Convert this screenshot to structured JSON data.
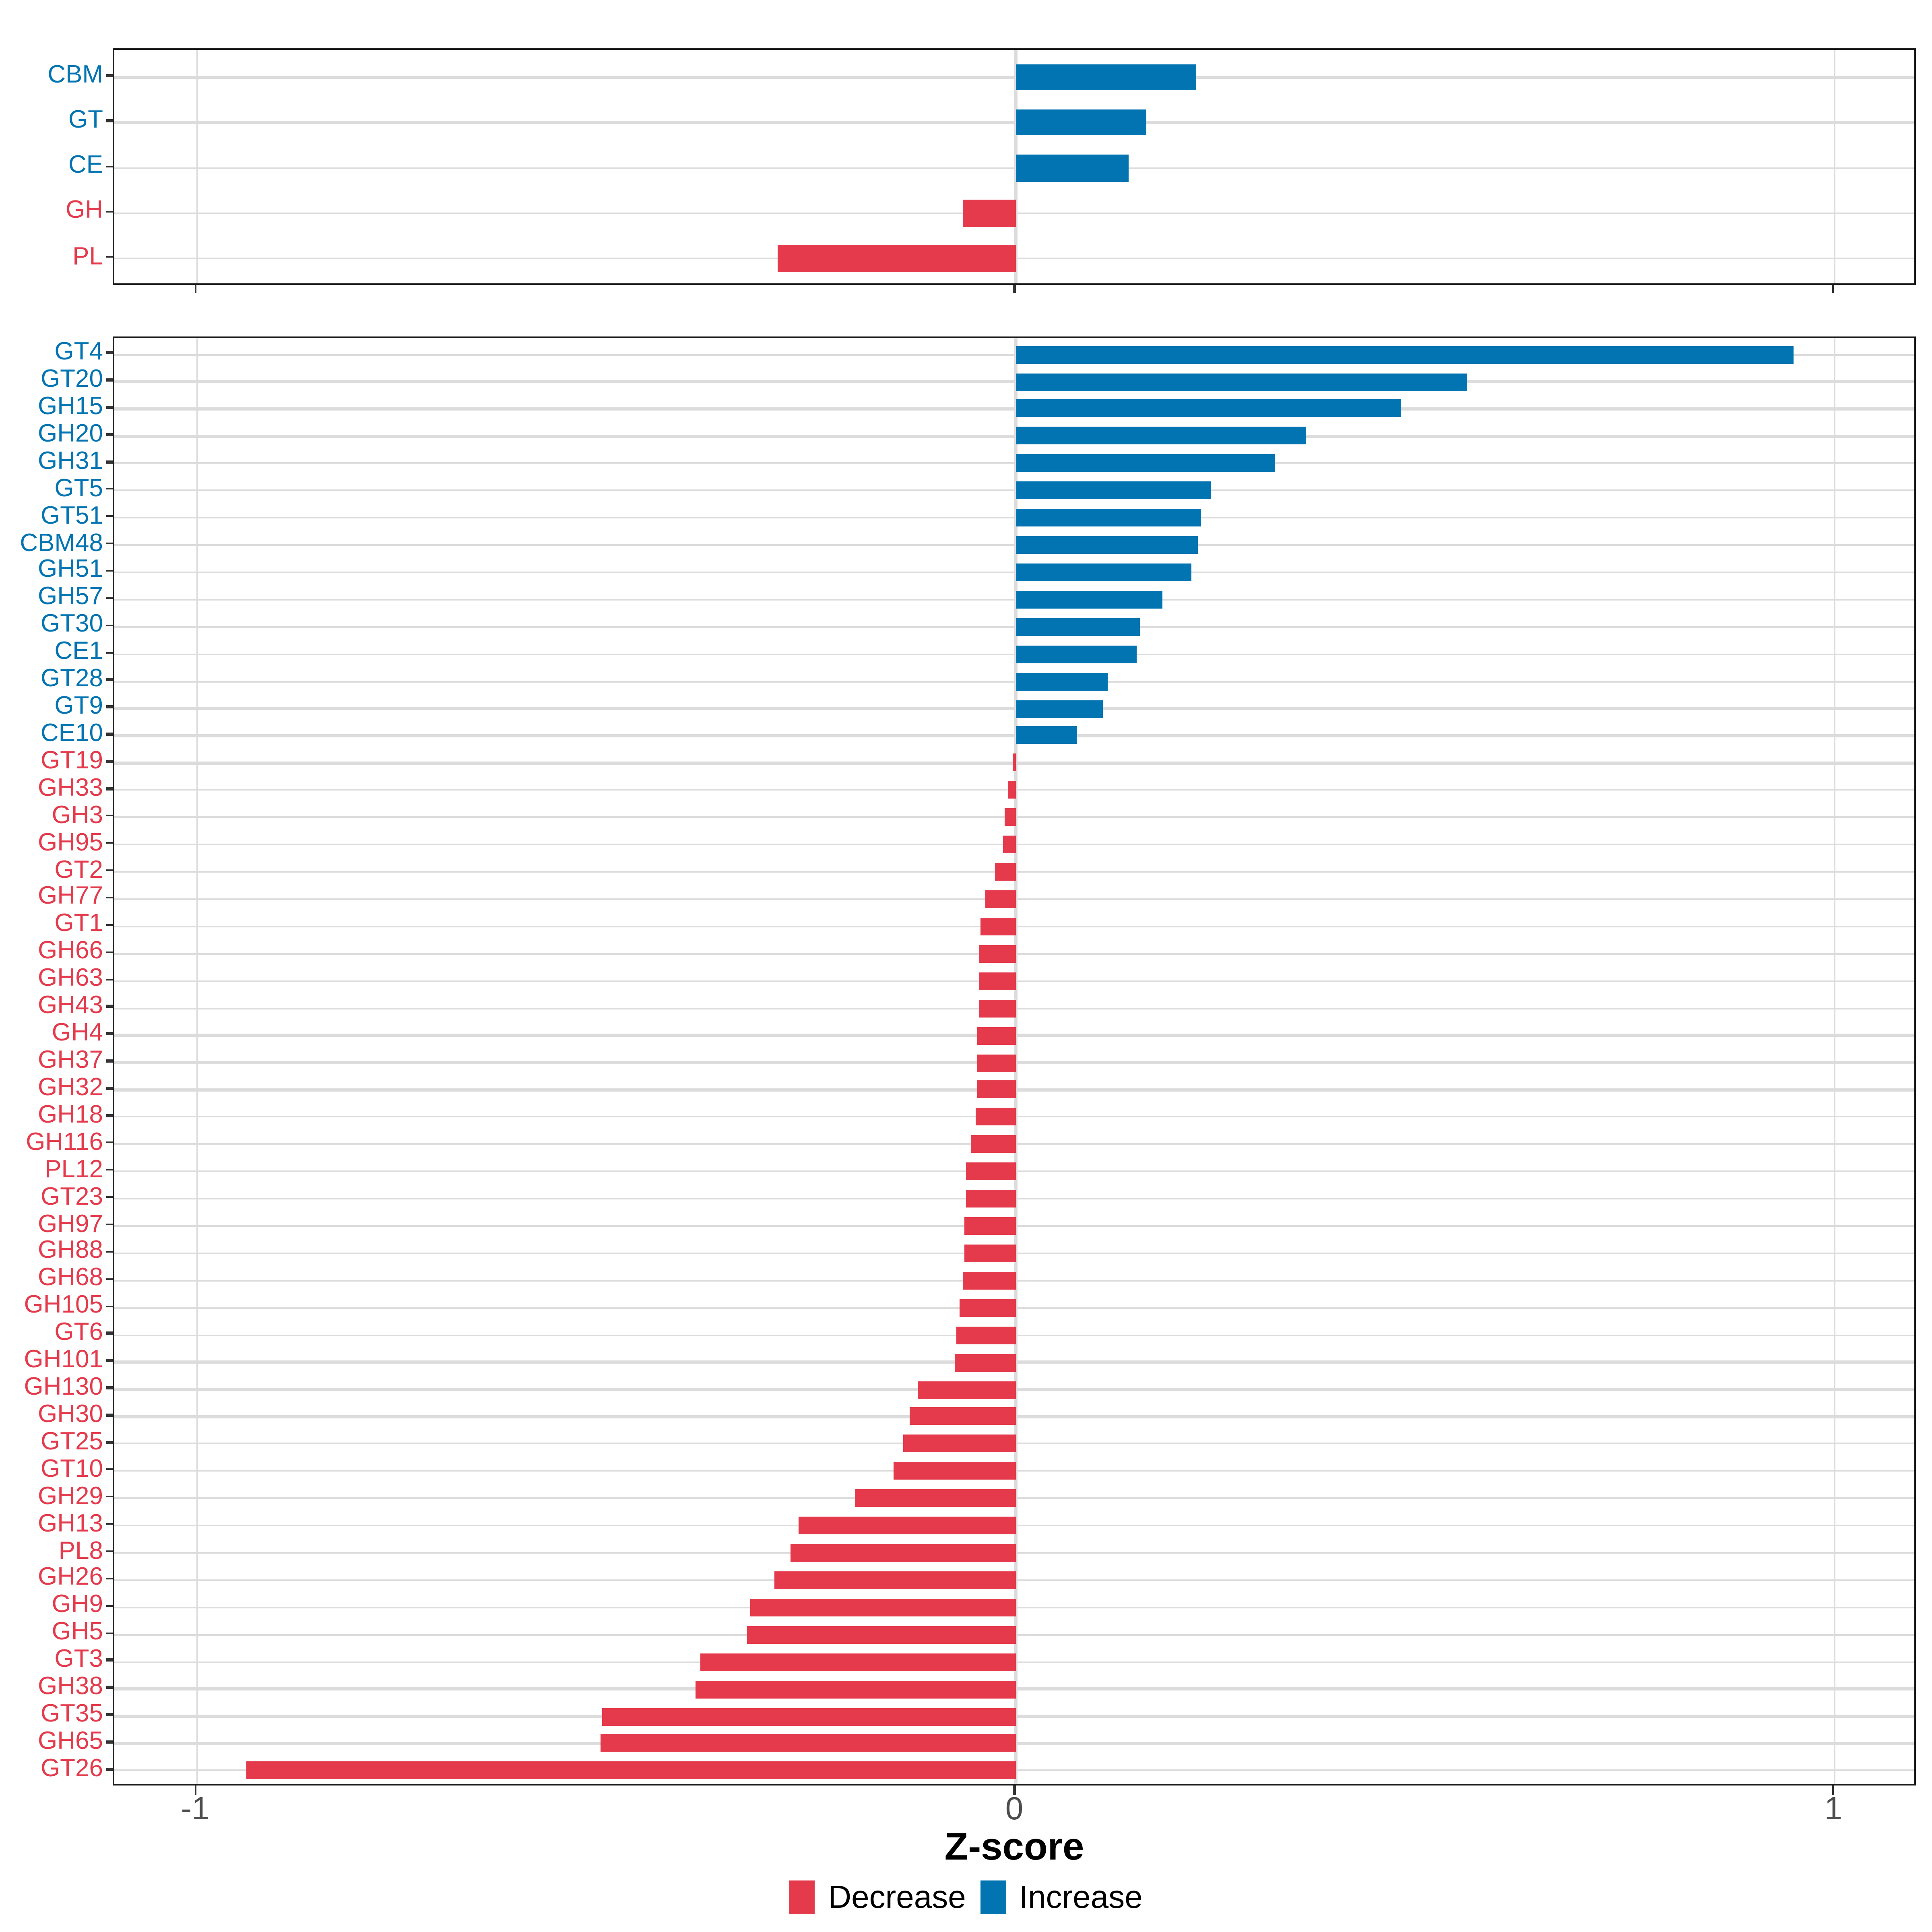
{
  "chart_data": [
    {
      "panel": "top",
      "type": "bar",
      "orientation": "horizontal",
      "title": "",
      "xlabel": "Z-score",
      "ylabel": "",
      "xlim": [
        -1.1,
        1.1
      ],
      "grid": true,
      "categories": [
        "CBM",
        "GT",
        "CE",
        "GH",
        "PL"
      ],
      "values": [
        0.22,
        0.16,
        0.138,
        -0.065,
        -0.29
      ],
      "groups": [
        "increase",
        "increase",
        "increase",
        "decrease",
        "decrease"
      ]
    },
    {
      "panel": "bottom",
      "type": "bar",
      "orientation": "horizontal",
      "title": "",
      "xlabel": "Z-score",
      "ylabel": "",
      "xlim": [
        -1.1,
        1.1
      ],
      "grid": true,
      "categories": [
        "GT4",
        "GT20",
        "GH15",
        "GH20",
        "GH31",
        "GT5",
        "GT51",
        "CBM48",
        "GH51",
        "GH57",
        "GT30",
        "CE1",
        "GT28",
        "GT9",
        "CE10",
        "GT19",
        "GH33",
        "GH3",
        "GH95",
        "GT2",
        "GH77",
        "GT1",
        "GH66",
        "GH63",
        "GH43",
        "GH4",
        "GH37",
        "GH32",
        "GH18",
        "GH116",
        "PL12",
        "GT23",
        "GH97",
        "GH88",
        "GH68",
        "GH105",
        "GT6",
        "GH101",
        "GH130",
        "GH30",
        "GT25",
        "GT10",
        "GH29",
        "GH13",
        "PL8",
        "GH26",
        "GH9",
        "GH5",
        "GT3",
        "GH38",
        "GT35",
        "GH65",
        "GT26"
      ],
      "values": [
        0.95,
        0.55,
        0.47,
        0.353,
        0.317,
        0.238,
        0.226,
        0.223,
        0.215,
        0.179,
        0.151,
        0.147,
        0.112,
        0.106,
        0.075,
        -0.004,
        -0.01,
        -0.014,
        -0.015,
        -0.026,
        -0.038,
        -0.044,
        -0.045,
        -0.046,
        -0.046,
        -0.047,
        -0.047,
        -0.048,
        -0.05,
        -0.056,
        -0.06,
        -0.061,
        -0.062,
        -0.063,
        -0.064,
        -0.068,
        -0.073,
        -0.075,
        -0.119,
        -0.13,
        -0.137,
        -0.15,
        -0.196,
        -0.266,
        -0.276,
        -0.295,
        -0.325,
        -0.328,
        -0.385,
        -0.392,
        -0.505,
        -0.507,
        -0.94
      ],
      "groups": [
        "increase",
        "increase",
        "increase",
        "increase",
        "increase",
        "increase",
        "increase",
        "increase",
        "increase",
        "increase",
        "increase",
        "increase",
        "increase",
        "increase",
        "increase",
        "decrease",
        "decrease",
        "decrease",
        "decrease",
        "decrease",
        "decrease",
        "decrease",
        "decrease",
        "decrease",
        "decrease",
        "decrease",
        "decrease",
        "decrease",
        "decrease",
        "decrease",
        "decrease",
        "decrease",
        "decrease",
        "decrease",
        "decrease",
        "decrease",
        "decrease",
        "decrease",
        "decrease",
        "decrease",
        "decrease",
        "decrease",
        "decrease",
        "decrease",
        "decrease",
        "decrease",
        "decrease",
        "decrease",
        "decrease",
        "decrease",
        "decrease",
        "decrease",
        "decrease"
      ]
    }
  ],
  "x_axis": {
    "title": "Z-score",
    "ticks": [
      {
        "value": -1,
        "label": "-1"
      },
      {
        "value": 0,
        "label": "0"
      },
      {
        "value": 1,
        "label": "1"
      }
    ]
  },
  "legend": {
    "items": [
      {
        "id": "decrease",
        "label": "Decrease",
        "color": "#E43A4C"
      },
      {
        "id": "increase",
        "label": "Increase",
        "color": "#0274B2"
      }
    ]
  },
  "colors": {
    "increase": "#0274B2",
    "decrease": "#E43A4C",
    "grid": "#DCDCDC",
    "axis_tick": "#333333",
    "tick_label": "#4D4D4D",
    "panel_border": "#1A1A1A",
    "background": "#FFFFFF"
  }
}
